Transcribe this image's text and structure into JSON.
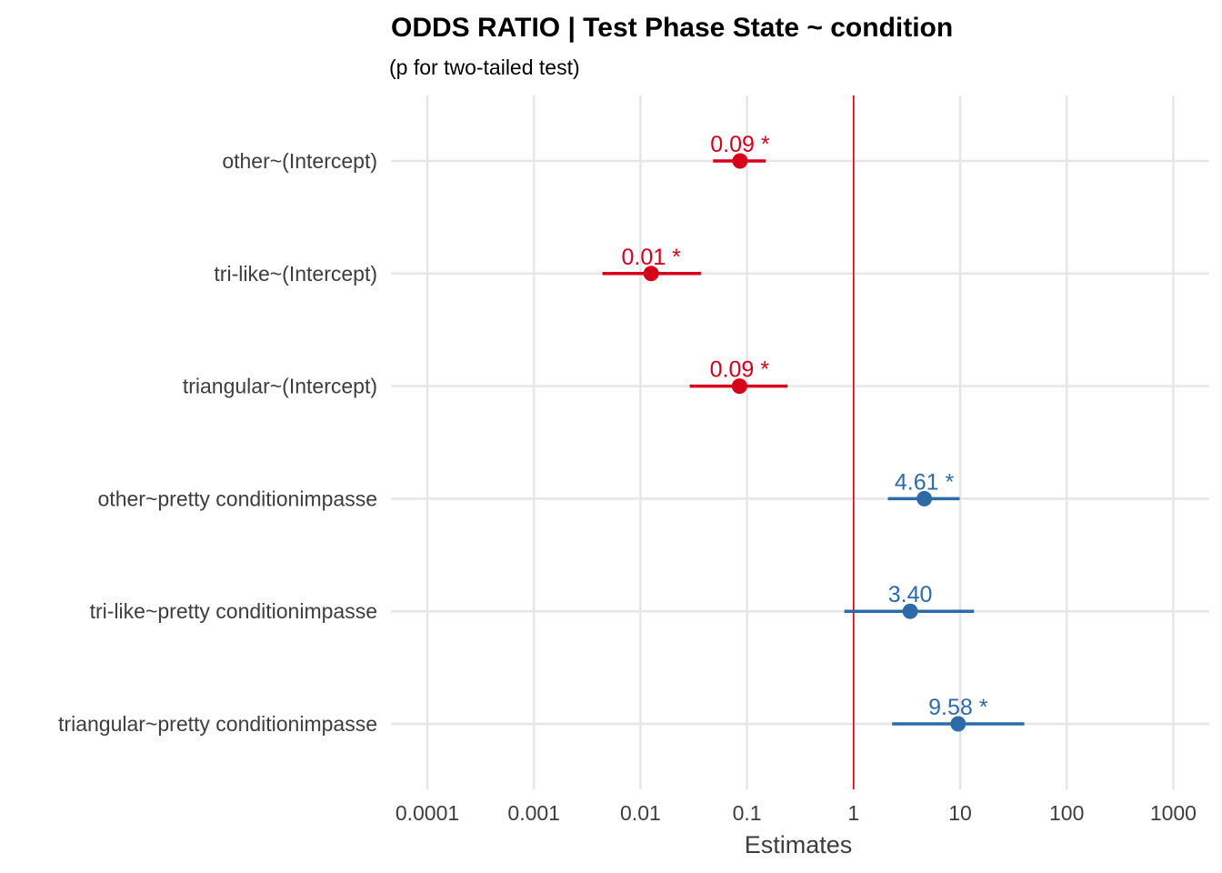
{
  "chart_data": {
    "type": "forest",
    "title": "ODDS RATIO | Test Phase State ~ condition",
    "subtitle": "(p for  two-tailed test)",
    "xlabel": "Estimates",
    "x_scale": "log10",
    "xlim": [
      5e-05,
      2000
    ],
    "x_ticks": [
      0.0001,
      0.001,
      0.01,
      0.1,
      1,
      10,
      100,
      1000
    ],
    "x_tick_labels": [
      "0.0001",
      "0.001",
      "0.01",
      "0.1",
      "1",
      "10",
      "100",
      "1000"
    ],
    "reference_line": 1,
    "grid": true,
    "terms": [
      {
        "label": "other~(Intercept)",
        "estimate": 0.086,
        "ci_low": 0.048,
        "ci_high": 0.15,
        "value_label": "0.09 *",
        "group": "negative"
      },
      {
        "label": "tri-like~(Intercept)",
        "estimate": 0.0126,
        "ci_low": 0.0044,
        "ci_high": 0.037,
        "value_label": "0.01 *",
        "group": "negative"
      },
      {
        "label": "triangular~(Intercept)",
        "estimate": 0.085,
        "ci_low": 0.029,
        "ci_high": 0.24,
        "value_label": "0.09 *",
        "group": "negative"
      },
      {
        "label": "other~pretty conditionimpasse",
        "estimate": 4.61,
        "ci_low": 2.1,
        "ci_high": 9.9,
        "value_label": "4.61 *",
        "group": "positive"
      },
      {
        "label": "tri-like~pretty conditionimpasse",
        "estimate": 3.4,
        "ci_low": 0.82,
        "ci_high": 13.5,
        "value_label": "3.40",
        "group": "positive"
      },
      {
        "label": "triangular~pretty conditionimpasse",
        "estimate": 9.58,
        "ci_low": 2.3,
        "ci_high": 40,
        "value_label": "9.58 *",
        "group": "positive"
      }
    ],
    "colors": {
      "negative": "#d7001b",
      "positive": "#2d6aa8",
      "reference": "#d7001b"
    }
  }
}
